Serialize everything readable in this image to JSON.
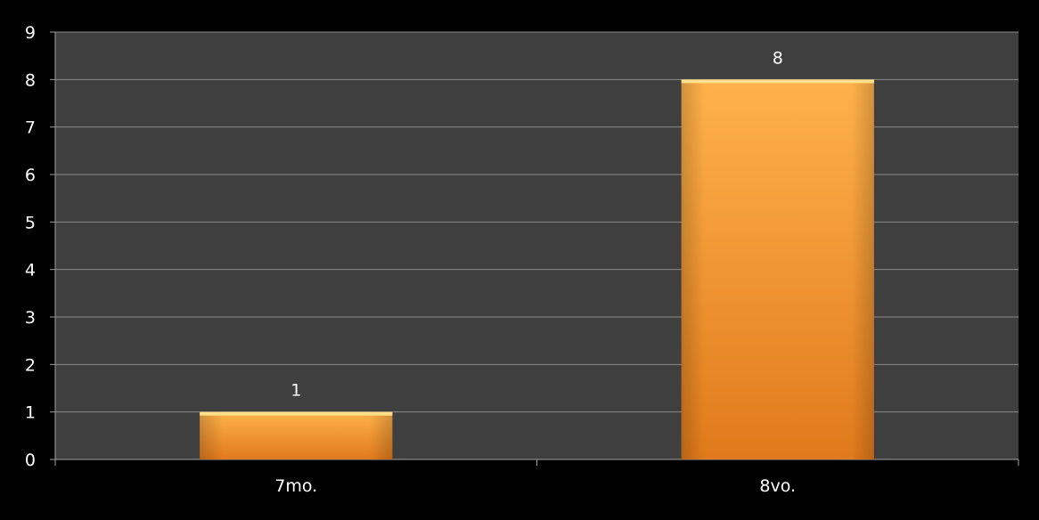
{
  "chart_data": {
    "type": "bar",
    "categories": [
      "7mo.",
      "8vo."
    ],
    "values": [
      1,
      8
    ],
    "data_labels": [
      "1",
      "8"
    ],
    "ylim": [
      0,
      9
    ],
    "yticks": [
      "0",
      "1",
      "2",
      "3",
      "4",
      "5",
      "6",
      "7",
      "8",
      "9"
    ],
    "grid": true,
    "legend": "none",
    "colors": {
      "background": "#000000",
      "plot_area": "#3f3f3f",
      "gridline": "#8a8a8a",
      "axis": "#a0a0a0",
      "bar_top": "#ffb24a",
      "bar_bottom": "#e07a1c",
      "text": "#ffffff"
    }
  }
}
